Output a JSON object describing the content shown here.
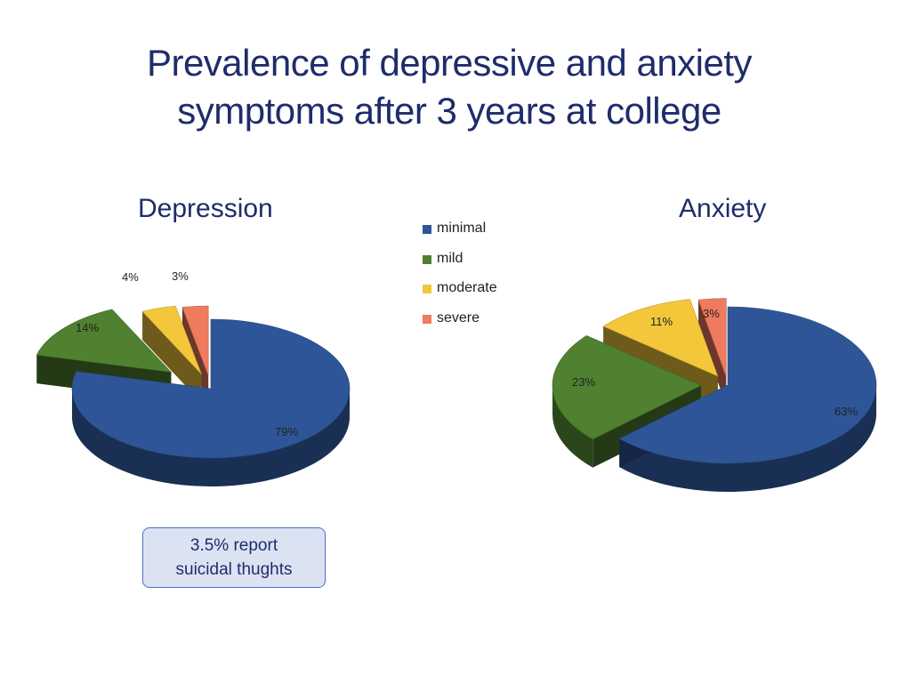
{
  "slide": {
    "title_line1": "Prevalence of depressive and anxiety",
    "title_line2": "symptoms after 3 years at college"
  },
  "legend": [
    {
      "label": "minimal",
      "color": "#2e5597"
    },
    {
      "label": "mild",
      "color": "#4f8130"
    },
    {
      "label": "moderate",
      "color": "#f4c73b"
    },
    {
      "label": "severe",
      "color": "#ee7b5e"
    }
  ],
  "callout": {
    "line1": "3.5% report",
    "line2": "suicidal thughts"
  },
  "chart_data": [
    {
      "type": "pie",
      "title": "Depression",
      "categories": [
        "minimal",
        "mild",
        "moderate",
        "severe"
      ],
      "values": [
        79,
        14,
        4,
        3
      ],
      "labels": [
        "79%",
        "14%",
        "4%",
        "3%"
      ],
      "colors": [
        "#2e5597",
        "#4f8130",
        "#f4c73b",
        "#ee7b5e"
      ],
      "exploded": true,
      "style": "3d"
    },
    {
      "type": "pie",
      "title": "Anxiety",
      "categories": [
        "minimal",
        "mild",
        "moderate",
        "severe"
      ],
      "values": [
        63,
        23,
        11,
        3
      ],
      "labels": [
        "63%",
        "23%",
        "11%",
        "3%"
      ],
      "colors": [
        "#2e5597",
        "#4f8130",
        "#f4c73b",
        "#ee7b5e"
      ],
      "exploded": true,
      "style": "3d"
    }
  ]
}
